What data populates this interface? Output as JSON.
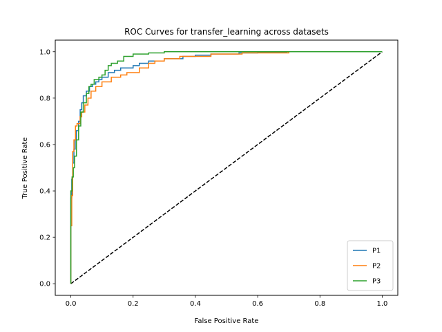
{
  "chart_data": {
    "type": "line",
    "title": "ROC Curves for transfer_learning across datasets",
    "xlabel": "False Positive Rate",
    "ylabel": "True Positive Rate",
    "xlim": [
      -0.05,
      1.05
    ],
    "ylim": [
      -0.05,
      1.05
    ],
    "xticks": [
      0.0,
      0.2,
      0.4,
      0.6,
      0.8,
      1.0
    ],
    "yticks": [
      0.0,
      0.2,
      0.4,
      0.6,
      0.8,
      1.0
    ],
    "xtick_labels": [
      "0.0",
      "0.2",
      "0.4",
      "0.6",
      "0.8",
      "1.0"
    ],
    "ytick_labels": [
      "0.0",
      "0.2",
      "0.4",
      "0.6",
      "0.8",
      "1.0"
    ],
    "grid": false,
    "legend_position": "lower-right",
    "diagonal": {
      "x": [
        0,
        1
      ],
      "y": [
        0,
        1
      ],
      "style": "dashed",
      "color": "#000000"
    },
    "series": [
      {
        "name": "P1",
        "color": "#1f77b4",
        "x": [
          0,
          0,
          0.003,
          0.003,
          0.006,
          0.006,
          0.01,
          0.01,
          0.014,
          0.014,
          0.018,
          0.018,
          0.025,
          0.025,
          0.03,
          0.03,
          0.035,
          0.035,
          0.04,
          0.04,
          0.05,
          0.05,
          0.06,
          0.06,
          0.07,
          0.07,
          0.08,
          0.08,
          0.09,
          0.09,
          0.1,
          0.1,
          0.12,
          0.12,
          0.14,
          0.14,
          0.16,
          0.16,
          0.2,
          0.2,
          0.22,
          0.22,
          0.25,
          0.25,
          0.3,
          0.3,
          0.36,
          0.36,
          0.4,
          0.4,
          0.45,
          0.45,
          0.54,
          0.54,
          0.6,
          0.6,
          0.695
        ],
        "y": [
          0,
          0.37,
          0.37,
          0.45,
          0.45,
          0.52,
          0.52,
          0.58,
          0.58,
          0.62,
          0.62,
          0.66,
          0.66,
          0.7,
          0.7,
          0.75,
          0.75,
          0.78,
          0.78,
          0.81,
          0.81,
          0.83,
          0.83,
          0.85,
          0.85,
          0.86,
          0.86,
          0.87,
          0.87,
          0.88,
          0.88,
          0.89,
          0.89,
          0.91,
          0.91,
          0.92,
          0.92,
          0.93,
          0.93,
          0.94,
          0.94,
          0.95,
          0.95,
          0.96,
          0.96,
          0.97,
          0.97,
          0.98,
          0.98,
          0.985,
          0.985,
          0.99,
          0.99,
          0.995,
          0.995,
          0.997,
          0.997
        ]
      },
      {
        "name": "P2",
        "color": "#ff7f0e",
        "x": [
          0,
          0,
          0.003,
          0.003,
          0.006,
          0.006,
          0.01,
          0.01,
          0.015,
          0.015,
          0.02,
          0.02,
          0.03,
          0.03,
          0.035,
          0.035,
          0.045,
          0.045,
          0.055,
          0.055,
          0.065,
          0.065,
          0.08,
          0.08,
          0.1,
          0.1,
          0.13,
          0.13,
          0.16,
          0.16,
          0.18,
          0.18,
          0.22,
          0.22,
          0.25,
          0.25,
          0.27,
          0.27,
          0.3,
          0.3,
          0.35,
          0.35,
          0.45,
          0.45,
          0.55,
          0.55,
          0.7,
          0.7,
          1.0
        ],
        "y": [
          0,
          0.25,
          0.25,
          0.38,
          0.38,
          0.57,
          0.57,
          0.62,
          0.62,
          0.68,
          0.68,
          0.69,
          0.69,
          0.72,
          0.72,
          0.74,
          0.74,
          0.77,
          0.77,
          0.8,
          0.8,
          0.83,
          0.83,
          0.85,
          0.85,
          0.87,
          0.87,
          0.89,
          0.89,
          0.9,
          0.9,
          0.91,
          0.91,
          0.93,
          0.93,
          0.95,
          0.95,
          0.96,
          0.96,
          0.97,
          0.97,
          0.98,
          0.98,
          0.99,
          0.99,
          0.995,
          0.995,
          1.0,
          1.0
        ]
      },
      {
        "name": "P3",
        "color": "#2ca02c",
        "x": [
          0,
          0,
          0.004,
          0.004,
          0.008,
          0.008,
          0.012,
          0.012,
          0.018,
          0.018,
          0.025,
          0.025,
          0.032,
          0.032,
          0.04,
          0.04,
          0.05,
          0.05,
          0.058,
          0.058,
          0.065,
          0.065,
          0.075,
          0.075,
          0.09,
          0.09,
          0.1,
          0.1,
          0.11,
          0.11,
          0.12,
          0.12,
          0.13,
          0.13,
          0.15,
          0.15,
          0.17,
          0.17,
          0.2,
          0.2,
          0.25,
          0.25,
          0.3,
          0.3,
          0.45,
          0.45,
          1.0
        ],
        "y": [
          0,
          0.4,
          0.4,
          0.46,
          0.46,
          0.5,
          0.5,
          0.55,
          0.55,
          0.62,
          0.62,
          0.68,
          0.68,
          0.74,
          0.74,
          0.78,
          0.78,
          0.82,
          0.82,
          0.85,
          0.85,
          0.86,
          0.86,
          0.88,
          0.88,
          0.89,
          0.89,
          0.9,
          0.9,
          0.92,
          0.92,
          0.94,
          0.94,
          0.95,
          0.95,
          0.96,
          0.96,
          0.98,
          0.98,
          0.99,
          0.99,
          0.995,
          0.995,
          1.0,
          1.0,
          1.0,
          1.0
        ]
      }
    ]
  }
}
